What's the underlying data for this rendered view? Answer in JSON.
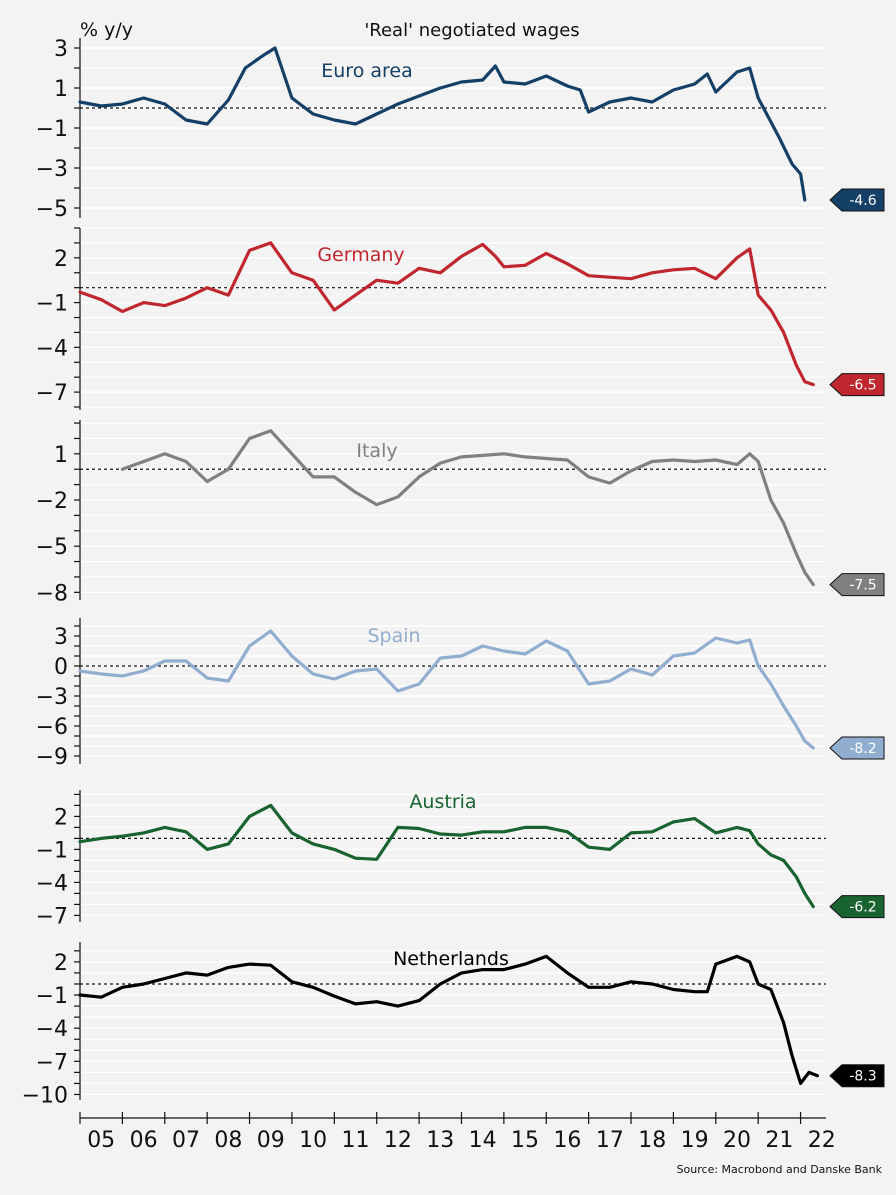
{
  "figure": {
    "title": "'Real' negotiated wages",
    "ylabel": "% y/y",
    "source": "Source: Macrobond and Danske Bank",
    "x_ticks": [
      "05",
      "06",
      "07",
      "08",
      "09",
      "10",
      "11",
      "12",
      "13",
      "14",
      "15",
      "16",
      "17",
      "18",
      "19",
      "20",
      "21",
      "22"
    ]
  },
  "chart_data": [
    {
      "type": "line",
      "title": "Euro area",
      "color": "#143f66",
      "xlim": [
        2005.0,
        2022.6
      ],
      "ylim": [
        -5.5,
        3.5
      ],
      "yticks": [
        3,
        1,
        -1,
        -3,
        -5
      ],
      "series": [
        {
          "name": "Euro area",
          "x": [
            2005.0,
            2005.5,
            2006.0,
            2006.5,
            2007.0,
            2007.5,
            2008.0,
            2008.5,
            2008.9,
            2009.3,
            2009.6,
            2010.0,
            2010.5,
            2011.0,
            2011.5,
            2012.0,
            2012.5,
            2013.0,
            2013.5,
            2014.0,
            2014.5,
            2014.8,
            2015.0,
            2015.5,
            2016.0,
            2016.5,
            2016.8,
            2017.0,
            2017.5,
            2018.0,
            2018.5,
            2019.0,
            2019.5,
            2019.8,
            2020.0,
            2020.5,
            2020.8,
            2021.0,
            2021.2,
            2021.5,
            2021.8,
            2022.0,
            2022.1
          ],
          "values": [
            0.3,
            0.1,
            0.2,
            0.5,
            0.2,
            -0.6,
            -0.8,
            0.4,
            2.0,
            2.6,
            3.0,
            0.5,
            -0.3,
            -0.6,
            -0.8,
            -0.3,
            0.2,
            0.6,
            1.0,
            1.3,
            1.4,
            2.1,
            1.3,
            1.2,
            1.6,
            1.1,
            0.9,
            -0.2,
            0.3,
            0.5,
            0.3,
            0.9,
            1.2,
            1.7,
            0.8,
            1.8,
            2.0,
            0.5,
            -0.3,
            -1.5,
            -2.8,
            -3.3,
            -4.6
          ]
        }
      ],
      "end_label": "-4.6",
      "end_value": -4.6
    },
    {
      "type": "line",
      "title": "Germany",
      "color": "#c0262d",
      "xlim": [
        2005.0,
        2022.6
      ],
      "ylim": [
        -8.2,
        4.0
      ],
      "yticks": [
        2,
        -1,
        -4,
        -7
      ],
      "series": [
        {
          "name": "Germany",
          "x": [
            2005.0,
            2005.5,
            2006.0,
            2006.5,
            2007.0,
            2007.5,
            2008.0,
            2008.5,
            2009.0,
            2009.5,
            2010.0,
            2010.5,
            2011.0,
            2011.5,
            2012.0,
            2012.5,
            2013.0,
            2013.5,
            2014.0,
            2014.5,
            2014.8,
            2015.0,
            2015.5,
            2016.0,
            2016.5,
            2017.0,
            2017.5,
            2018.0,
            2018.5,
            2019.0,
            2019.5,
            2020.0,
            2020.5,
            2020.8,
            2021.0,
            2021.3,
            2021.6,
            2021.9,
            2022.1,
            2022.3
          ],
          "values": [
            -0.3,
            -0.8,
            -1.6,
            -1.0,
            -1.2,
            -0.7,
            0.0,
            -0.5,
            2.5,
            3.0,
            1.0,
            0.5,
            -1.5,
            -0.5,
            0.5,
            0.3,
            1.3,
            1.0,
            2.1,
            2.9,
            2.1,
            1.4,
            1.5,
            2.3,
            1.6,
            0.8,
            0.7,
            0.6,
            1.0,
            1.2,
            1.3,
            0.6,
            2.0,
            2.6,
            -0.5,
            -1.5,
            -3.0,
            -5.2,
            -6.3,
            -6.5
          ]
        }
      ],
      "end_label": "-6.5",
      "end_value": -6.5
    },
    {
      "type": "line",
      "title": "Italy",
      "color": "#808080",
      "xlim": [
        2005.0,
        2022.6
      ],
      "ylim": [
        -8.5,
        3.2
      ],
      "yticks": [
        1,
        -2,
        -5,
        -8
      ],
      "series": [
        {
          "name": "Italy",
          "x": [
            2006.0,
            2006.5,
            2007.0,
            2007.5,
            2008.0,
            2008.5,
            2009.0,
            2009.5,
            2010.0,
            2010.5,
            2011.0,
            2011.5,
            2012.0,
            2012.5,
            2013.0,
            2013.5,
            2014.0,
            2014.5,
            2015.0,
            2015.5,
            2016.0,
            2016.5,
            2017.0,
            2017.5,
            2018.0,
            2018.5,
            2019.0,
            2019.5,
            2020.0,
            2020.5,
            2020.8,
            2021.0,
            2021.3,
            2021.6,
            2021.9,
            2022.1,
            2022.3
          ],
          "values": [
            0.0,
            0.5,
            1.0,
            0.5,
            -0.8,
            0.0,
            2.0,
            2.5,
            1.0,
            -0.5,
            -0.5,
            -1.5,
            -2.3,
            -1.8,
            -0.5,
            0.4,
            0.8,
            0.9,
            1.0,
            0.8,
            0.7,
            0.6,
            -0.5,
            -0.9,
            -0.1,
            0.5,
            0.6,
            0.5,
            0.6,
            0.3,
            1.0,
            0.5,
            -2.0,
            -3.5,
            -5.5,
            -6.7,
            -7.5
          ]
        }
      ],
      "end_label": "-7.5",
      "end_value": -7.5
    },
    {
      "type": "line",
      "title": "Spain",
      "color": "#91aed0",
      "xlim": [
        2005.0,
        2022.6
      ],
      "ylim": [
        -9.8,
        4.8
      ],
      "yticks": [
        3,
        0,
        -3,
        -6,
        -9
      ],
      "series": [
        {
          "name": "Spain",
          "x": [
            2005.0,
            2005.5,
            2006.0,
            2006.5,
            2007.0,
            2007.5,
            2008.0,
            2008.5,
            2009.0,
            2009.5,
            2010.0,
            2010.5,
            2011.0,
            2011.5,
            2012.0,
            2012.5,
            2013.0,
            2013.5,
            2014.0,
            2014.5,
            2015.0,
            2015.5,
            2016.0,
            2016.5,
            2017.0,
            2017.5,
            2018.0,
            2018.5,
            2019.0,
            2019.5,
            2020.0,
            2020.5,
            2020.8,
            2021.0,
            2021.3,
            2021.6,
            2021.9,
            2022.1,
            2022.3
          ],
          "values": [
            -0.5,
            -0.8,
            -1.0,
            -0.5,
            0.5,
            0.5,
            -1.2,
            -1.5,
            2.0,
            3.5,
            1.0,
            -0.8,
            -1.3,
            -0.5,
            -0.3,
            -2.5,
            -1.8,
            0.8,
            1.0,
            2.0,
            1.5,
            1.2,
            2.5,
            1.5,
            -1.8,
            -1.5,
            -0.3,
            -0.9,
            1.0,
            1.3,
            2.8,
            2.3,
            2.6,
            0.0,
            -1.8,
            -4.0,
            -6.0,
            -7.5,
            -8.2
          ]
        }
      ],
      "end_label": "-8.2",
      "end_value": -8.2
    },
    {
      "type": "line",
      "title": "Austria",
      "color": "#18632f",
      "xlim": [
        2005.0,
        2022.6
      ],
      "ylim": [
        -7.6,
        4.4
      ],
      "yticks": [
        2,
        -1,
        -4,
        -7
      ],
      "series": [
        {
          "name": "Austria",
          "x": [
            2005.0,
            2005.5,
            2006.0,
            2006.5,
            2007.0,
            2007.5,
            2008.0,
            2008.5,
            2009.0,
            2009.5,
            2010.0,
            2010.5,
            2011.0,
            2011.5,
            2012.0,
            2012.5,
            2013.0,
            2013.5,
            2014.0,
            2014.5,
            2015.0,
            2015.5,
            2016.0,
            2016.5,
            2017.0,
            2017.5,
            2018.0,
            2018.5,
            2019.0,
            2019.5,
            2020.0,
            2020.5,
            2020.8,
            2021.0,
            2021.3,
            2021.6,
            2021.9,
            2022.1,
            2022.3
          ],
          "values": [
            -0.3,
            0.0,
            0.2,
            0.5,
            1.0,
            0.6,
            -1.0,
            -0.5,
            2.0,
            3.0,
            0.5,
            -0.5,
            -1.0,
            -1.8,
            -1.9,
            1.0,
            0.9,
            0.4,
            0.3,
            0.6,
            0.6,
            1.0,
            1.0,
            0.6,
            -0.8,
            -1.0,
            0.5,
            0.6,
            1.5,
            1.8,
            0.5,
            1.0,
            0.7,
            -0.5,
            -1.5,
            -2.0,
            -3.5,
            -5.0,
            -6.2
          ]
        }
      ],
      "end_label": "-6.2",
      "end_value": -6.2
    },
    {
      "type": "line",
      "title": "Netherlands",
      "color": "#000000",
      "xlim": [
        2005.0,
        2022.6
      ],
      "ylim": [
        -10.5,
        3.8
      ],
      "yticks": [
        2,
        -1,
        -4,
        -7,
        -10
      ],
      "series": [
        {
          "name": "Netherlands",
          "x": [
            2005.0,
            2005.5,
            2006.0,
            2006.5,
            2007.0,
            2007.5,
            2008.0,
            2008.5,
            2009.0,
            2009.5,
            2010.0,
            2010.5,
            2011.0,
            2011.5,
            2012.0,
            2012.5,
            2013.0,
            2013.5,
            2014.0,
            2014.5,
            2015.0,
            2015.5,
            2016.0,
            2016.5,
            2017.0,
            2017.5,
            2018.0,
            2018.5,
            2019.0,
            2019.5,
            2019.8,
            2020.0,
            2020.5,
            2020.8,
            2021.0,
            2021.3,
            2021.6,
            2021.8,
            2022.0,
            2022.2,
            2022.4
          ],
          "values": [
            -1.0,
            -1.2,
            -0.3,
            0.0,
            0.5,
            1.0,
            0.8,
            1.5,
            1.8,
            1.7,
            0.2,
            -0.3,
            -1.1,
            -1.8,
            -1.6,
            -2.0,
            -1.5,
            0.0,
            1.0,
            1.3,
            1.3,
            1.8,
            2.5,
            1.0,
            -0.3,
            -0.3,
            0.2,
            0.0,
            -0.5,
            -0.7,
            -0.7,
            1.8,
            2.5,
            2.0,
            0.0,
            -0.5,
            -3.5,
            -6.5,
            -9.0,
            -8.0,
            -8.3
          ]
        }
      ],
      "end_label": "-8.3",
      "end_value": -8.3
    }
  ]
}
